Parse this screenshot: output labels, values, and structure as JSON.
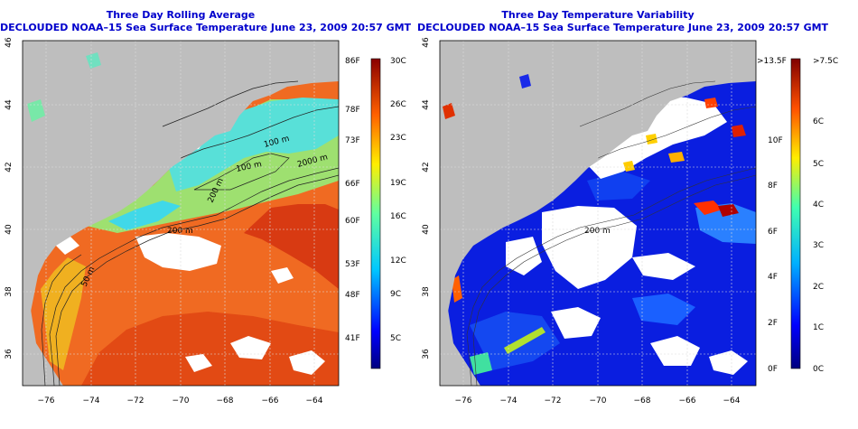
{
  "left_panel": {
    "title_line1": "Three Day Rolling Average",
    "title_line2": "DECLOUDED NOAA–15 Sea Surface Temperature June 23, 2009 20:57 GMT",
    "y_ticks": [
      "46",
      "44",
      "42",
      "40",
      "38",
      "36"
    ],
    "x_ticks": [
      "−76",
      "−74",
      "−72",
      "−70",
      "−68",
      "−66",
      "−64"
    ],
    "contour_labels": [
      "100 m",
      "100 m",
      "2000 m",
      "200 m",
      "200 m",
      "50 m"
    ],
    "colorbar_f_labels": [
      "86F",
      "78F",
      "73F",
      "66F",
      "60F",
      "53F",
      "48F",
      "41F"
    ],
    "colorbar_c_labels": [
      "30C",
      "26C",
      "23C",
      "19C",
      "16C",
      "12C",
      "9C",
      "5C"
    ]
  },
  "right_panel": {
    "title_line1": "Three Day Temperature Variability",
    "title_line2": "DECLOUDED NOAA–15 Sea Surface Temperature June 23, 2009 20:57 GMT",
    "y_ticks": [
      "46",
      "44",
      "42",
      "40",
      "38",
      "36"
    ],
    "x_ticks": [
      "−76",
      "−74",
      "−72",
      "−70",
      "−68",
      "−66",
      "−64"
    ],
    "contour_labels": [
      "200 m"
    ],
    "colorbar_f_labels": [
      ">13.5F",
      "10F",
      "8F",
      "6F",
      "4F",
      "2F",
      "0F"
    ],
    "colorbar_c_labels": [
      ">7.5C",
      "6C",
      "5C",
      "4C",
      "3C",
      "2C",
      "1C",
      "0C"
    ]
  },
  "colors": {
    "title": "#0000cc",
    "land": "#bebebe",
    "no_data": "#ffffff"
  }
}
